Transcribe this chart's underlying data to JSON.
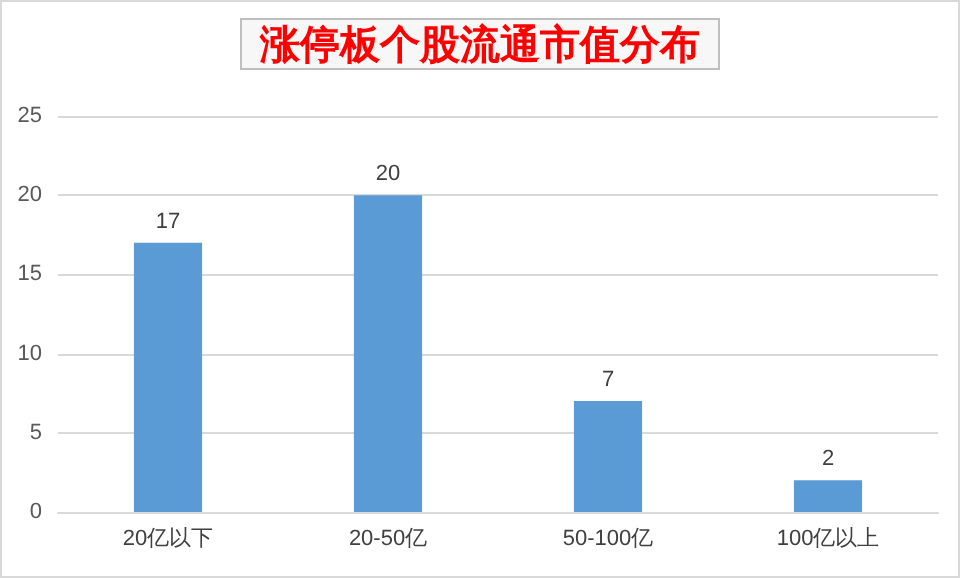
{
  "chart_data": {
    "type": "bar",
    "title": "涨停板个股流通市值分布",
    "categories": [
      "20亿以下",
      "20-50亿",
      "50-100亿",
      "100亿以上"
    ],
    "values": [
      17,
      20,
      7,
      2
    ],
    "color": "#5b9bd5",
    "ylim": [
      0,
      25
    ],
    "yticks": [
      0,
      5,
      10,
      15,
      20,
      25
    ],
    "grid": "y",
    "data_labels": true
  }
}
